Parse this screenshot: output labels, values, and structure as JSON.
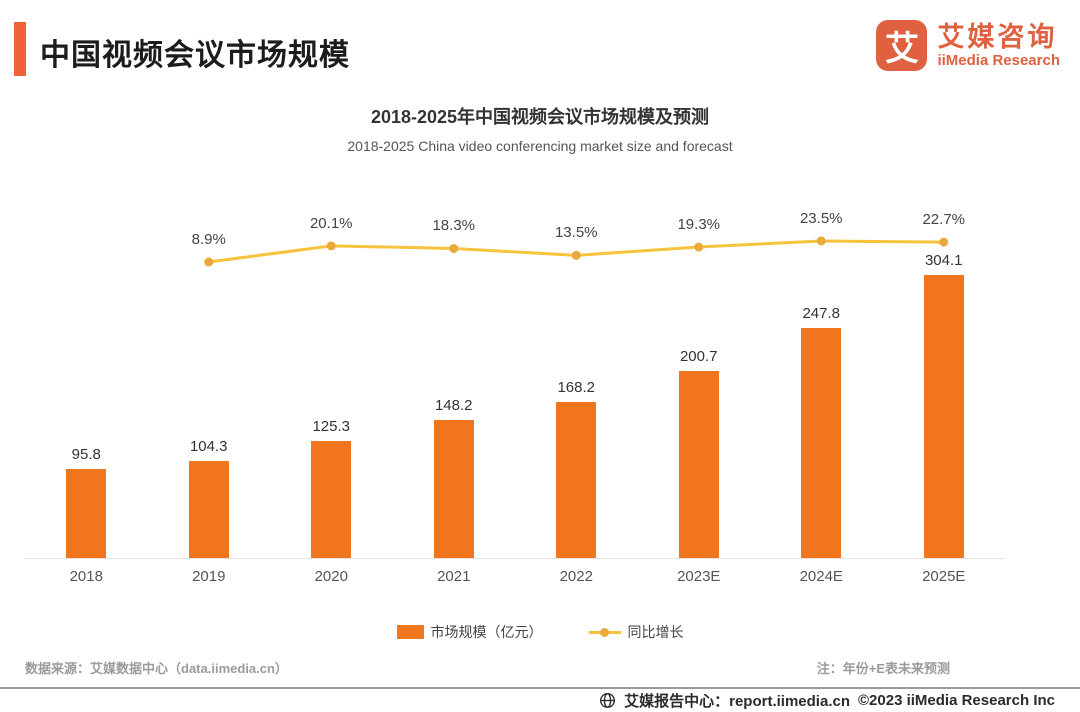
{
  "header": {
    "title": "中国视频会议市场规模",
    "logo": {
      "glyph": "艾",
      "name_cn": "艾媒咨询",
      "name_en": "iiMedia Research"
    }
  },
  "chart_data": {
    "type": "bar",
    "title": "2018-2025年中国视频会议市场规模及预测",
    "subtitle": "2018-2025 China video conferencing market size and forecast",
    "categories": [
      "2018",
      "2019",
      "2020",
      "2021",
      "2022",
      "2023E",
      "2024E",
      "2025E"
    ],
    "series": [
      {
        "name": "市场规模（亿元）",
        "type": "bar",
        "color": "#F0751C",
        "values": [
          95.8,
          104.3,
          125.3,
          148.2,
          168.2,
          200.7,
          247.8,
          304.1
        ]
      },
      {
        "name": "同比增长",
        "type": "line",
        "color": "#F7C23C",
        "unit": "%",
        "values": [
          null,
          8.9,
          20.1,
          18.3,
          13.5,
          19.3,
          23.5,
          22.7
        ]
      }
    ],
    "legend_position": "bottom",
    "grid": false,
    "value_labels": true
  },
  "footnotes": {
    "source": "数据来源：艾媒数据中心（data.iimedia.cn）",
    "note": "注：年份+E表未来预测"
  },
  "footer": {
    "site": "艾媒报告中心：report.iimedia.cn",
    "copyright": "©2023  iiMedia Research  Inc"
  },
  "colors": {
    "bar": "#F0751C",
    "line": "#F7C23C",
    "marker": "#EBA93C",
    "accent": "#F1603B",
    "logo": "#DF6140"
  }
}
